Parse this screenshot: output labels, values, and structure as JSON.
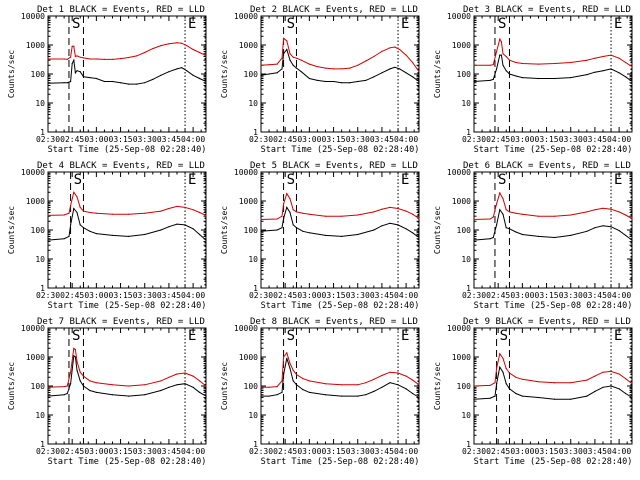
{
  "figure": {
    "x_axis_title": "Start Time (25-Sep-08 02:28:40)",
    "y_axis_title": "Counts/sec",
    "x_tick_labels": [
      "02:30",
      "02:45",
      "03:00",
      "03:15",
      "03:30",
      "03:45",
      "04:00"
    ],
    "y_tick_labels": [
      "1",
      "10",
      "100",
      "1000",
      "10000"
    ],
    "marker_labels": [
      "S",
      "E"
    ]
  },
  "colors": {
    "events": "#000000",
    "lld": "#d40000",
    "frame": "#000000",
    "background": "#ffffff"
  },
  "chart_data": [
    {
      "type": "line",
      "title": "Det 1  BLACK = Events, RED = LLD",
      "ylim": [
        1,
        10000
      ],
      "xlim": [
        "02:30",
        "04:08"
      ],
      "y_scale": "log",
      "dashed_markers": [
        "02:43",
        "02:52"
      ],
      "dotted_markers": [
        "03:55",
        "04:08"
      ],
      "x": [
        "02:30",
        "02:40",
        "02:42",
        "02:44",
        "02:45",
        "02:46",
        "02:47",
        "02:48",
        "02:50",
        "02:52",
        "02:56",
        "03:00",
        "03:05",
        "03:10",
        "03:15",
        "03:20",
        "03:25",
        "03:30",
        "03:35",
        "03:40",
        "03:45",
        "03:50",
        "03:53",
        "03:56",
        "04:00",
        "04:04",
        "04:08"
      ],
      "series": [
        {
          "name": "Events",
          "values": [
            48,
            50,
            50,
            55,
            230,
            300,
            110,
            130,
            120,
            80,
            75,
            70,
            55,
            55,
            50,
            45,
            45,
            50,
            65,
            90,
            120,
            150,
            165,
            130,
            90,
            70,
            55
          ]
        },
        {
          "name": "LLD",
          "values": [
            330,
            330,
            320,
            380,
            900,
            900,
            400,
            420,
            380,
            360,
            330,
            330,
            320,
            320,
            340,
            370,
            420,
            550,
            750,
            950,
            1100,
            1200,
            1150,
            950,
            700,
            550,
            430
          ]
        }
      ]
    },
    {
      "type": "line",
      "title": "Det 2  BLACK = Events, RED = LLD",
      "ylim": [
        1,
        10000
      ],
      "xlim": [
        "02:30",
        "04:08"
      ],
      "y_scale": "log",
      "dashed_markers": [
        "02:44",
        "02:52"
      ],
      "dotted_markers": [
        "03:55",
        "04:08"
      ],
      "x": [
        "02:30",
        "02:35",
        "02:40",
        "02:43",
        "02:44",
        "02:46",
        "02:48",
        "02:50",
        "02:52",
        "02:55",
        "03:00",
        "03:05",
        "03:10",
        "03:15",
        "03:20",
        "03:25",
        "03:30",
        "03:35",
        "03:40",
        "03:45",
        "03:50",
        "03:53",
        "03:56",
        "04:00",
        "04:04",
        "04:08"
      ],
      "series": [
        {
          "name": "Events",
          "values": [
            90,
            100,
            110,
            150,
            500,
            700,
            300,
            200,
            160,
            120,
            70,
            60,
            55,
            55,
            50,
            50,
            55,
            60,
            80,
            110,
            150,
            170,
            150,
            110,
            80,
            55
          ]
        },
        {
          "name": "LLD",
          "values": [
            200,
            210,
            220,
            350,
            1700,
            1400,
            500,
            380,
            350,
            300,
            220,
            180,
            160,
            150,
            150,
            160,
            200,
            280,
            400,
            600,
            800,
            850,
            700,
            450,
            250,
            120
          ]
        }
      ]
    },
    {
      "type": "line",
      "title": "Det 3  BLACK = Events, RED = LLD",
      "ylim": [
        1,
        10000
      ],
      "xlim": [
        "02:30",
        "04:08"
      ],
      "y_scale": "log",
      "dashed_markers": [
        "02:43",
        "02:52"
      ],
      "dotted_markers": [
        "03:55",
        "04:08"
      ],
      "x": [
        "02:30",
        "02:40",
        "02:42",
        "02:44",
        "02:46",
        "02:47",
        "02:48",
        "02:50",
        "02:52",
        "02:56",
        "03:00",
        "03:10",
        "03:20",
        "03:30",
        "03:40",
        "03:45",
        "03:50",
        "03:55",
        "04:00",
        "04:04",
        "04:08"
      ],
      "series": [
        {
          "name": "Events",
          "values": [
            55,
            60,
            65,
            150,
            450,
            450,
            200,
            130,
            100,
            85,
            75,
            70,
            70,
            75,
            95,
            115,
            130,
            150,
            110,
            80,
            55
          ]
        },
        {
          "name": "LLD",
          "values": [
            200,
            200,
            210,
            600,
            1600,
            1300,
            500,
            400,
            300,
            250,
            230,
            220,
            230,
            250,
            300,
            350,
            400,
            450,
            350,
            250,
            180
          ]
        }
      ]
    },
    {
      "type": "line",
      "title": "Det 4  BLACK = Events, RED = LLD",
      "ylim": [
        1,
        10000
      ],
      "xlim": [
        "02:30",
        "04:08"
      ],
      "y_scale": "log",
      "dashed_markers": [
        "02:44",
        "02:52"
      ],
      "dotted_markers": [
        "03:55",
        "04:08"
      ],
      "x": [
        "02:30",
        "02:40",
        "02:43",
        "02:44",
        "02:46",
        "02:48",
        "02:50",
        "02:52",
        "02:56",
        "03:00",
        "03:10",
        "03:20",
        "03:30",
        "03:40",
        "03:45",
        "03:50",
        "03:55",
        "04:00",
        "04:04",
        "04:08"
      ],
      "series": [
        {
          "name": "Events",
          "values": [
            45,
            50,
            60,
            150,
            550,
            400,
            150,
            120,
            90,
            75,
            65,
            60,
            70,
            100,
            130,
            160,
            150,
            110,
            70,
            45
          ]
        },
        {
          "name": "LLD",
          "values": [
            320,
            330,
            380,
            700,
            2000,
            1400,
            600,
            450,
            400,
            380,
            350,
            350,
            380,
            450,
            550,
            650,
            600,
            500,
            400,
            320
          ]
        }
      ]
    },
    {
      "type": "line",
      "title": "Det 5  BLACK = Events, RED = LLD",
      "ylim": [
        1,
        10000
      ],
      "xlim": [
        "02:30",
        "04:08"
      ],
      "y_scale": "log",
      "dashed_markers": [
        "02:44",
        "02:52"
      ],
      "dotted_markers": [
        "03:55",
        "04:08"
      ],
      "x": [
        "02:30",
        "02:40",
        "02:43",
        "02:44",
        "02:46",
        "02:48",
        "02:50",
        "02:52",
        "02:56",
        "03:00",
        "03:10",
        "03:20",
        "03:30",
        "03:40",
        "03:45",
        "03:50",
        "03:55",
        "04:00",
        "04:04",
        "04:08"
      ],
      "series": [
        {
          "name": "Events",
          "values": [
            90,
            100,
            120,
            250,
            600,
            400,
            150,
            120,
            90,
            80,
            65,
            60,
            70,
            100,
            140,
            170,
            150,
            110,
            80,
            55
          ]
        },
        {
          "name": "LLD",
          "values": [
            230,
            240,
            300,
            800,
            1800,
            1200,
            500,
            420,
            380,
            350,
            300,
            300,
            330,
            420,
            520,
            600,
            550,
            450,
            350,
            250
          ]
        }
      ]
    },
    {
      "type": "line",
      "title": "Det 6  BLACK = Events, RED = LLD",
      "ylim": [
        1,
        10000
      ],
      "xlim": [
        "02:30",
        "04:08"
      ],
      "y_scale": "log",
      "dashed_markers": [
        "02:43",
        "02:52"
      ],
      "dotted_markers": [
        "03:55",
        "04:08"
      ],
      "x": [
        "02:30",
        "02:40",
        "02:42",
        "02:44",
        "02:46",
        "02:48",
        "02:50",
        "02:52",
        "02:56",
        "03:00",
        "03:10",
        "03:20",
        "03:30",
        "03:40",
        "03:45",
        "03:50",
        "03:55",
        "04:00",
        "04:04",
        "04:08"
      ],
      "series": [
        {
          "name": "Events",
          "values": [
            45,
            50,
            55,
            150,
            500,
            350,
            120,
            110,
            85,
            70,
            60,
            55,
            65,
            90,
            120,
            140,
            130,
            95,
            65,
            45
          ]
        },
        {
          "name": "LLD",
          "values": [
            230,
            240,
            280,
            800,
            1900,
            1200,
            500,
            420,
            380,
            350,
            300,
            300,
            330,
            420,
            500,
            560,
            520,
            420,
            330,
            250
          ]
        }
      ]
    },
    {
      "type": "line",
      "title": "Det 7  BLACK = Events, RED = LLD",
      "ylim": [
        1,
        10000
      ],
      "xlim": [
        "02:30",
        "04:08"
      ],
      "y_scale": "log",
      "dashed_markers": [
        "02:43",
        "02:52"
      ],
      "dotted_markers": [
        "03:55",
        "04:08"
      ],
      "x": [
        "02:30",
        "02:40",
        "02:42",
        "02:44",
        "02:46",
        "02:47",
        "02:48",
        "02:50",
        "02:52",
        "02:56",
        "03:00",
        "03:10",
        "03:20",
        "03:30",
        "03:40",
        "03:45",
        "03:50",
        "03:55",
        "04:00",
        "04:04",
        "04:08"
      ],
      "series": [
        {
          "name": "Events",
          "values": [
            45,
            50,
            55,
            120,
            1100,
            1000,
            350,
            150,
            100,
            70,
            60,
            50,
            45,
            50,
            70,
            90,
            110,
            120,
            90,
            60,
            45
          ]
        },
        {
          "name": "LLD",
          "values": [
            90,
            95,
            100,
            300,
            2000,
            1800,
            700,
            300,
            220,
            150,
            130,
            110,
            100,
            110,
            150,
            200,
            260,
            280,
            220,
            150,
            100
          ]
        }
      ]
    },
    {
      "type": "line",
      "title": "Det 8  BLACK = Events, RED = LLD",
      "ylim": [
        1,
        10000
      ],
      "xlim": [
        "02:30",
        "04:08"
      ],
      "y_scale": "log",
      "dashed_markers": [
        "02:44",
        "02:52"
      ],
      "dotted_markers": [
        "03:55",
        "04:08"
      ],
      "x": [
        "02:30",
        "02:35",
        "02:40",
        "02:43",
        "02:44",
        "02:46",
        "02:48",
        "02:50",
        "02:52",
        "02:56",
        "03:00",
        "03:10",
        "03:20",
        "03:30",
        "03:35",
        "03:40",
        "03:45",
        "03:50",
        "03:55",
        "04:00",
        "04:04",
        "04:08"
      ],
      "series": [
        {
          "name": "Events",
          "values": [
            45,
            45,
            50,
            60,
            250,
            900,
            400,
            150,
            110,
            75,
            60,
            50,
            45,
            45,
            50,
            65,
            90,
            130,
            110,
            80,
            55,
            40
          ]
        },
        {
          "name": "LLD",
          "values": [
            90,
            90,
            95,
            150,
            1000,
            1400,
            600,
            350,
            250,
            180,
            150,
            120,
            110,
            110,
            130,
            170,
            230,
            300,
            280,
            220,
            160,
            110
          ]
        }
      ]
    },
    {
      "type": "line",
      "title": "Det 9  BLACK = Events, RED = LLD",
      "ylim": [
        1,
        10000
      ],
      "xlim": [
        "02:30",
        "04:08"
      ],
      "y_scale": "log",
      "dashed_markers": [
        "02:44",
        "02:52"
      ],
      "dotted_markers": [
        "03:55",
        "04:08"
      ],
      "x": [
        "02:30",
        "02:40",
        "02:43",
        "02:44",
        "02:46",
        "02:48",
        "02:50",
        "02:52",
        "02:56",
        "03:00",
        "03:10",
        "03:20",
        "03:30",
        "03:40",
        "03:45",
        "03:50",
        "03:55",
        "04:00",
        "04:04",
        "04:08"
      ],
      "series": [
        {
          "name": "Events",
          "values": [
            35,
            38,
            45,
            120,
            450,
            300,
            120,
            80,
            55,
            45,
            40,
            35,
            35,
            45,
            65,
            90,
            100,
            80,
            55,
            40
          ]
        },
        {
          "name": "LLD",
          "values": [
            100,
            105,
            130,
            400,
            1300,
            900,
            400,
            280,
            200,
            170,
            140,
            130,
            130,
            160,
            220,
            300,
            320,
            260,
            180,
            120
          ]
        }
      ]
    }
  ]
}
